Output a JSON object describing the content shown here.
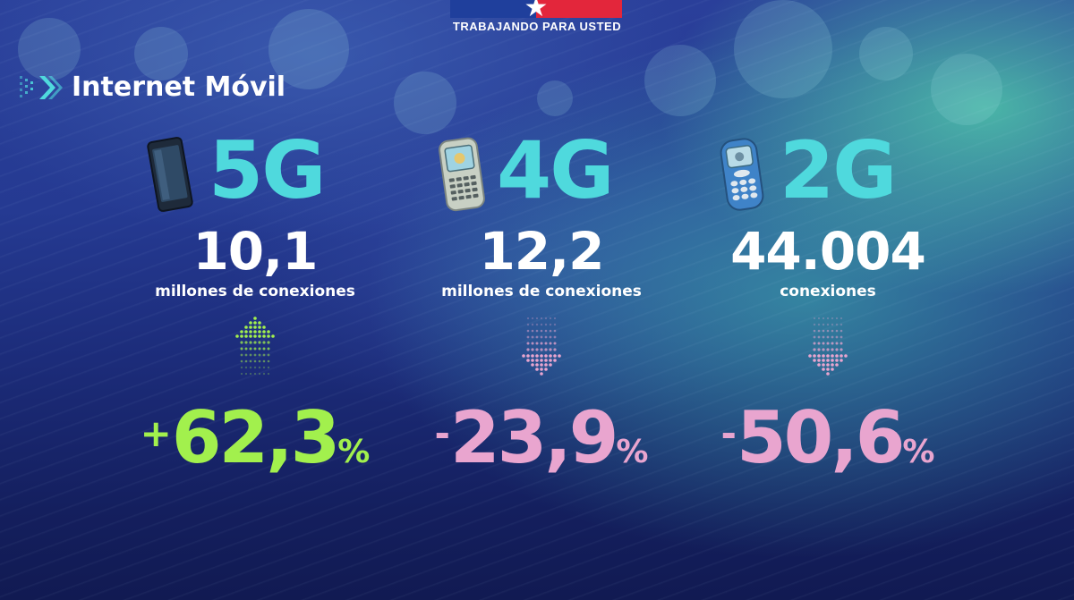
{
  "header": {
    "motto": "TRABAJANDO PARA USTED",
    "flag_colors": {
      "blue": "#1f3f9c",
      "red": "#e3263b",
      "white": "#ffffff"
    },
    "star_glyph": "★"
  },
  "section": {
    "icon": "double-chevron-icon",
    "title": "Internet Móvil"
  },
  "columns": [
    {
      "generation": "5G",
      "icon": "smartphone-icon",
      "connections_value": "10,1",
      "connections_label": "millones de conexiones",
      "trend": "up",
      "change_sign": "+",
      "change_value": "62,3",
      "change_unit": "%",
      "color": "#a2f04d"
    },
    {
      "generation": "4G",
      "icon": "keyboard-phone-icon",
      "connections_value": "12,2",
      "connections_label": "millones de conexiones",
      "trend": "down",
      "change_sign": "-",
      "change_value": "23,9",
      "change_unit": "%",
      "color": "#e9a5cf"
    },
    {
      "generation": "2G",
      "icon": "feature-phone-icon",
      "connections_value": "44.004",
      "connections_label": "conexiones",
      "trend": "down",
      "change_sign": "-",
      "change_value": "50,6",
      "change_unit": "%",
      "color": "#e9a5cf"
    }
  ],
  "colors": {
    "generation_text": "#4fd9dd",
    "increase": "#a2f04d",
    "decrease": "#e9a5cf"
  }
}
